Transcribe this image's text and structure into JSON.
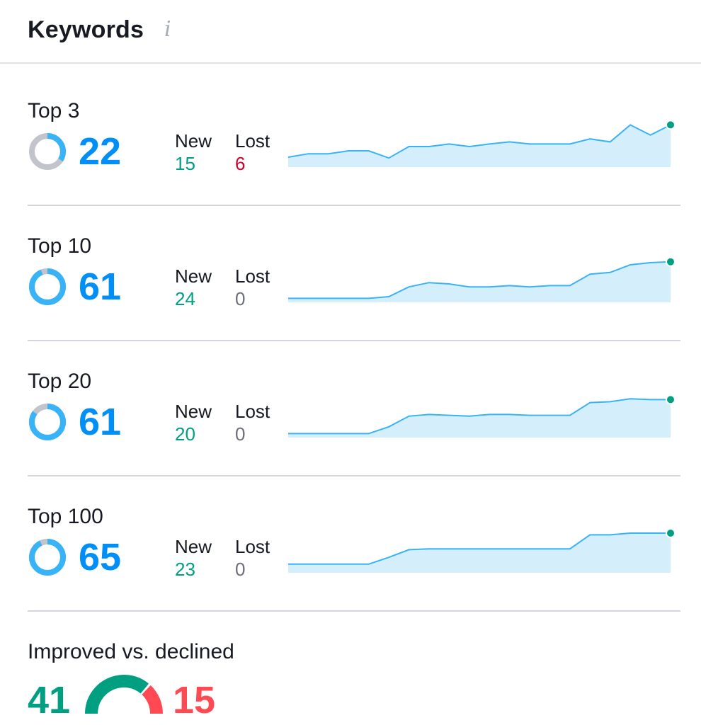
{
  "header": {
    "title": "Keywords",
    "info_icon": "info-icon"
  },
  "colors": {
    "blue": "#008ff8",
    "line": "#39b3f7",
    "fill": "#d5eefc",
    "green": "#009f81",
    "red": "#d1002f",
    "gray_ring": "#c2c4cc",
    "declined": "#ff4953"
  },
  "labels": {
    "new": "New",
    "lost": "Lost"
  },
  "rows": [
    {
      "label": "Top 3",
      "count": "22",
      "share": 0.34,
      "new": "15",
      "lost": "6",
      "lost_color": "red",
      "trend": [
        0.2,
        0.28,
        0.28,
        0.35,
        0.35,
        0.18,
        0.45,
        0.45,
        0.51,
        0.45,
        0.51,
        0.56,
        0.51,
        0.51,
        0.51,
        0.63,
        0.56,
        0.96,
        0.72,
        0.96
      ]
    },
    {
      "label": "Top 10",
      "count": "61",
      "share": 0.94,
      "new": "24",
      "lost": "0",
      "lost_color": "gray",
      "trend": [
        0.06,
        0.06,
        0.06,
        0.06,
        0.06,
        0.1,
        0.33,
        0.43,
        0.4,
        0.33,
        0.33,
        0.36,
        0.33,
        0.36,
        0.36,
        0.63,
        0.67,
        0.85,
        0.9,
        0.92
      ]
    },
    {
      "label": "Top 20",
      "count": "61",
      "share": 0.85,
      "new": "20",
      "lost": "0",
      "lost_color": "gray",
      "trend": [
        0.06,
        0.06,
        0.06,
        0.06,
        0.06,
        0.22,
        0.47,
        0.51,
        0.49,
        0.47,
        0.51,
        0.51,
        0.49,
        0.49,
        0.49,
        0.79,
        0.81,
        0.88,
        0.86,
        0.86
      ]
    },
    {
      "label": "Top 100",
      "count": "65",
      "share": 0.93,
      "new": "23",
      "lost": "0",
      "lost_color": "gray",
      "trend": [
        0.17,
        0.17,
        0.17,
        0.17,
        0.17,
        0.33,
        0.51,
        0.53,
        0.53,
        0.53,
        0.53,
        0.53,
        0.53,
        0.53,
        0.53,
        0.86,
        0.86,
        0.9,
        0.9,
        0.9
      ]
    }
  ],
  "bottom": {
    "label": "Improved vs. declined",
    "improved": "41",
    "declined": "15",
    "improved_share": 0.73
  }
}
